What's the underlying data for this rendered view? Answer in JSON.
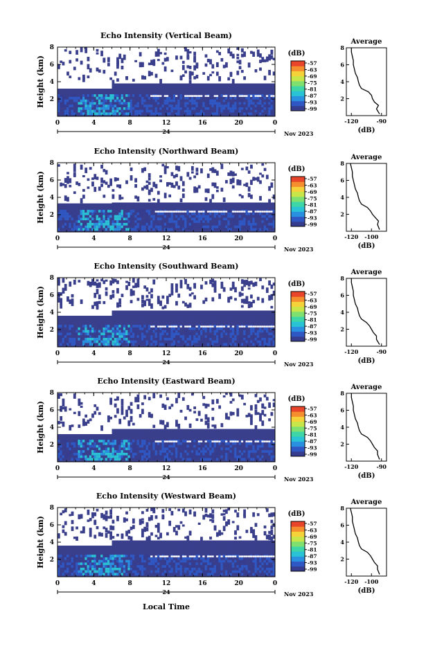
{
  "figure": {
    "ylabel": "Height (km)",
    "xlabel": "Local Time",
    "colorbar_unit": "(dB)",
    "colorbar_ticks": [
      "-57",
      "-63",
      "-69",
      "-75",
      "-81",
      "-87",
      "-93",
      "-99"
    ],
    "average_title": "Average",
    "average_xlabel": "(dB)",
    "date_label": "24",
    "month_label": "Nov 2023",
    "colors": {
      "background_empty": "#ffffff",
      "band_dark": "#3a3f8c",
      "scale": [
        "#363d8f",
        "#2f58c4",
        "#2a90e0",
        "#2ac3d6",
        "#3ed6a6",
        "#7fe070",
        "#c8e64a",
        "#f5d23a",
        "#f58e2e",
        "#e8452a"
      ]
    }
  },
  "chart_data": [
    {
      "type": "heatmap",
      "title": "Echo Intensity (Vertical Beam)",
      "x": {
        "label": "Local Time",
        "range": [
          0,
          24
        ],
        "ticks": [
          "0",
          "4",
          "8",
          "12",
          "16",
          "20",
          "0"
        ]
      },
      "y": {
        "label": "Height (km)",
        "range": [
          0,
          8
        ],
        "ticks": [
          "2",
          "4",
          "6",
          "8"
        ]
      },
      "colorbar": {
        "unit": "dB",
        "range": [
          -99,
          -57
        ]
      },
      "average_profile": {
        "title": "Average",
        "xlabel": "(dB)",
        "xticks": [
          "-120",
          "-90"
        ],
        "yticks": [
          "2",
          "4",
          "6",
          "8"
        ],
        "height": [
          0.2,
          0.8,
          1.2,
          1.6,
          2.0,
          2.4,
          2.8,
          3.2,
          3.6,
          4.0,
          4.5,
          5.0,
          5.5,
          6.0,
          6.5,
          7.0,
          7.5,
          8.0
        ],
        "db": [
          -92,
          -95,
          -93,
          -97,
          -99,
          -100,
          -103,
          -110,
          -112,
          -113,
          -114,
          -116,
          -117,
          -118,
          -118,
          -119,
          -120,
          -120
        ]
      }
    },
    {
      "type": "heatmap",
      "title": "Echo Intensity (Northward Beam)",
      "x": {
        "label": "Local Time",
        "range": [
          0,
          24
        ],
        "ticks": [
          "0",
          "4",
          "8",
          "12",
          "16",
          "20",
          "0"
        ]
      },
      "y": {
        "label": "Height (km)",
        "range": [
          0,
          8
        ],
        "ticks": [
          "2",
          "4",
          "6",
          "8"
        ]
      },
      "colorbar": {
        "unit": "dB",
        "range": [
          -99,
          -57
        ]
      },
      "average_profile": {
        "title": "Average",
        "xlabel": "(dB)",
        "xticks": [
          "-120",
          "-100"
        ],
        "yticks": [
          "2",
          "4",
          "6",
          "8"
        ],
        "height": [
          0.2,
          0.8,
          1.2,
          1.6,
          2.0,
          2.4,
          2.8,
          3.2,
          3.6,
          4.0,
          4.5,
          5.0,
          5.5,
          6.0,
          6.5,
          7.0,
          7.5,
          8.0
        ],
        "db": [
          -92,
          -94,
          -93,
          -96,
          -99,
          -101,
          -104,
          -110,
          -112,
          -113,
          -114,
          -116,
          -117,
          -118,
          -119,
          -119,
          -120,
          -121
        ]
      }
    },
    {
      "type": "heatmap",
      "title": "Echo Intensity (Southward Beam)",
      "x": {
        "label": "Local Time",
        "range": [
          0,
          24
        ],
        "ticks": [
          "0",
          "4",
          "8",
          "12",
          "16",
          "20",
          "0"
        ]
      },
      "y": {
        "label": "Height (km)",
        "range": [
          0,
          8
        ],
        "ticks": [
          "2",
          "4",
          "6",
          "8"
        ]
      },
      "colorbar": {
        "unit": "dB",
        "range": [
          -99,
          -57
        ]
      },
      "average_profile": {
        "title": "Average",
        "xlabel": "(dB)",
        "xticks": [
          "-120",
          "-90"
        ],
        "yticks": [
          "2",
          "4",
          "6",
          "8"
        ],
        "height": [
          0.2,
          0.8,
          1.2,
          1.6,
          2.0,
          2.4,
          2.8,
          3.2,
          3.6,
          4.0,
          4.5,
          5.0,
          5.5,
          6.0,
          6.5,
          7.0,
          7.5,
          8.0
        ],
        "db": [
          -92,
          -95,
          -95,
          -98,
          -100,
          -102,
          -105,
          -110,
          -112,
          -113,
          -114,
          -116,
          -117,
          -118,
          -118,
          -119,
          -120,
          -120
        ]
      }
    },
    {
      "type": "heatmap",
      "title": "Echo Intensity (Eastward Beam)",
      "x": {
        "label": "Local Time",
        "range": [
          0,
          24
        ],
        "ticks": [
          "0",
          "4",
          "8",
          "12",
          "16",
          "20",
          "0"
        ]
      },
      "y": {
        "label": "Height (km)",
        "range": [
          0,
          8
        ],
        "ticks": [
          "2",
          "4",
          "6",
          "8"
        ]
      },
      "colorbar": {
        "unit": "dB",
        "range": [
          -99,
          -57
        ]
      },
      "average_profile": {
        "title": "Average",
        "xlabel": "(dB)",
        "xticks": [
          "-120",
          "-90"
        ],
        "yticks": [
          "2",
          "4",
          "6",
          "8"
        ],
        "height": [
          0.2,
          0.8,
          1.2,
          1.6,
          2.0,
          2.4,
          2.8,
          3.2,
          3.6,
          4.0,
          4.5,
          5.0,
          5.5,
          6.0,
          6.5,
          7.0,
          7.5,
          8.0
        ],
        "db": [
          -92,
          -94,
          -94,
          -97,
          -99,
          -101,
          -104,
          -110,
          -112,
          -113,
          -114,
          -116,
          -117,
          -118,
          -118,
          -119,
          -120,
          -120
        ]
      }
    },
    {
      "type": "heatmap",
      "title": "Echo Intensity (Westward Beam)",
      "x": {
        "label": "Local Time",
        "range": [
          0,
          24
        ],
        "ticks": [
          "0",
          "4",
          "8",
          "12",
          "16",
          "20",
          "0"
        ]
      },
      "y": {
        "label": "Height (km)",
        "range": [
          0,
          8
        ],
        "ticks": [
          "2",
          "4",
          "6",
          "8"
        ]
      },
      "colorbar": {
        "unit": "dB",
        "range": [
          -99,
          -57
        ]
      },
      "average_profile": {
        "title": "Average",
        "xlabel": "(dB)",
        "xticks": [
          "-120",
          "-100"
        ],
        "yticks": [
          "2",
          "4",
          "6",
          "8"
        ],
        "height": [
          0.2,
          0.8,
          1.2,
          1.6,
          2.0,
          2.4,
          2.8,
          3.2,
          3.6,
          4.0,
          4.5,
          5.0,
          5.5,
          6.0,
          6.5,
          7.0,
          7.5,
          8.0
        ],
        "db": [
          -92,
          -94,
          -94,
          -97,
          -99,
          -101,
          -104,
          -110,
          -112,
          -113,
          -114,
          -116,
          -117,
          -118,
          -119,
          -119,
          -120,
          -121
        ]
      }
    }
  ]
}
